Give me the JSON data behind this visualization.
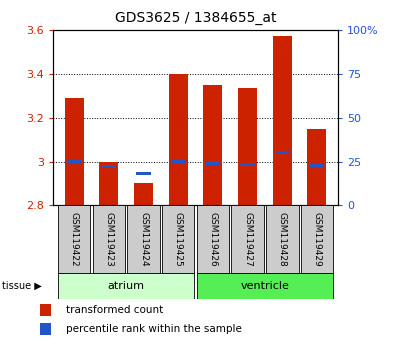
{
  "title": "GDS3625 / 1384655_at",
  "samples": [
    "GSM119422",
    "GSM119423",
    "GSM119424",
    "GSM119425",
    "GSM119426",
    "GSM119427",
    "GSM119428",
    "GSM119429"
  ],
  "transformed_counts": [
    3.29,
    3.0,
    2.9,
    3.4,
    3.35,
    3.335,
    3.575,
    3.15
  ],
  "percentile_ranks": [
    25.0,
    22.0,
    18.0,
    25.0,
    24.0,
    23.5,
    30.0,
    22.5
  ],
  "ymin": 2.8,
  "ymax": 3.6,
  "yticks": [
    2.8,
    3.0,
    3.2,
    3.4,
    3.6
  ],
  "right_yticks": [
    0,
    25,
    50,
    75,
    100
  ],
  "right_ytick_labels": [
    "0",
    "25",
    "50",
    "75",
    "100%"
  ],
  "groups": [
    {
      "label": "atrium",
      "samples": [
        0,
        1,
        2,
        3
      ],
      "color": "#ccffcc"
    },
    {
      "label": "ventricle",
      "samples": [
        4,
        5,
        6,
        7
      ],
      "color": "#55ee55"
    }
  ],
  "bar_color": "#cc2200",
  "blue_marker_color": "#2255cc",
  "bar_width": 0.55,
  "label_color_left": "#cc2200",
  "label_color_right": "#2255cc",
  "tissue_label": "tissue",
  "legend_items": [
    "transformed count",
    "percentile rank within the sample"
  ],
  "legend_colors": [
    "#cc2200",
    "#2255cc"
  ],
  "sample_box_color": "#cccccc"
}
